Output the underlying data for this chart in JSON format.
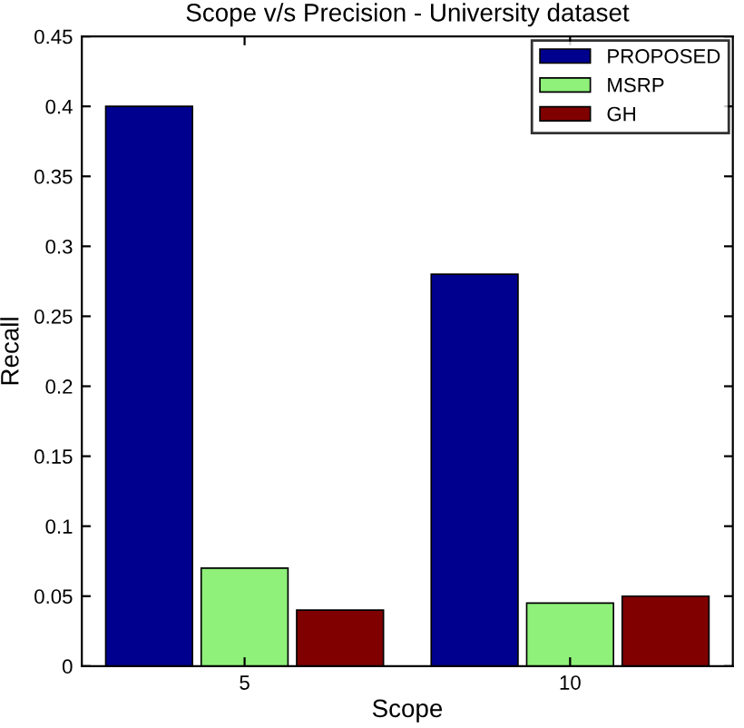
{
  "chart_data": {
    "type": "bar",
    "title": "Scope v/s Precision - University dataset",
    "xlabel": "Scope",
    "ylabel": "Recall",
    "categories": [
      "5",
      "10"
    ],
    "series": [
      {
        "name": "PROPOSED",
        "color": "#00008f",
        "values": [
          0.4,
          0.28
        ]
      },
      {
        "name": "MSRP",
        "color": "#8ff07a",
        "values": [
          0.07,
          0.045
        ]
      },
      {
        "name": "GH",
        "color": "#800000",
        "values": [
          0.04,
          0.05
        ]
      }
    ],
    "ylim": [
      0,
      0.45
    ],
    "yticks": [
      0,
      0.05,
      0.1,
      0.15,
      0.2,
      0.25,
      0.3,
      0.35,
      0.4,
      0.45
    ],
    "legend": "top right",
    "grid": false
  }
}
